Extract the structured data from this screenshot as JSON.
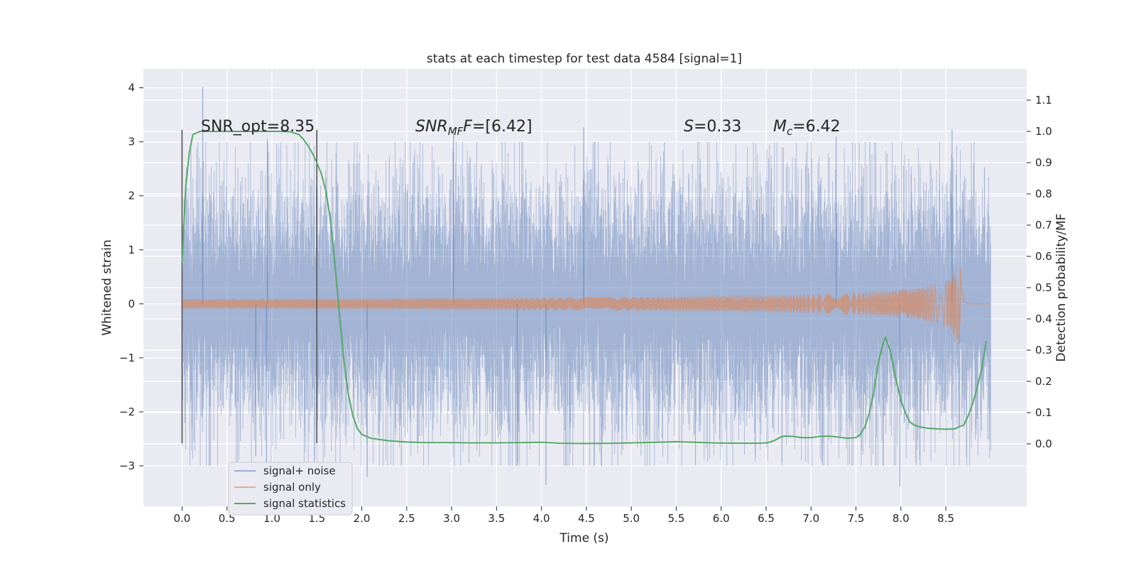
{
  "chart_data": {
    "type": "line",
    "title": "stats at each timestep for test data 4584 [signal=1]",
    "xlabel": "Time (s)",
    "ylabel": "Whitened strain",
    "y2label": "Detection probability/MF",
    "xlim": [
      -0.43,
      9.4
    ],
    "ylim": [
      -3.75,
      4.35
    ],
    "y2lim": [
      -0.2,
      1.2
    ],
    "x_ticks": [
      0.0,
      0.5,
      1.0,
      1.5,
      2.0,
      2.5,
      3.0,
      3.5,
      4.0,
      4.5,
      5.0,
      5.5,
      6.0,
      6.5,
      7.0,
      7.5,
      8.0,
      8.5
    ],
    "x_tick_labels": [
      "0.0",
      "0.5",
      "1.0",
      "1.5",
      "2.0",
      "2.5",
      "3.0",
      "3.5",
      "4.0",
      "4.5",
      "5.0",
      "5.5",
      "6.0",
      "6.5",
      "7.0",
      "7.5",
      "8.0",
      "8.5"
    ],
    "y_ticks": [
      -3,
      -2,
      -1,
      0,
      1,
      2,
      3,
      4
    ],
    "y_tick_labels": [
      "−3",
      "−2",
      "−1",
      "0",
      "1",
      "2",
      "3",
      "4"
    ],
    "y2_ticks": [
      0.0,
      0.1,
      0.2,
      0.3,
      0.4,
      0.5,
      0.6,
      0.7,
      0.8,
      0.9,
      1.0,
      1.1
    ],
    "y2_tick_labels": [
      "0.0",
      "0.1",
      "0.2",
      "0.3",
      "0.4",
      "0.5",
      "0.6",
      "0.7",
      "0.8",
      "0.9",
      "1.0",
      "1.1"
    ],
    "grid": true,
    "legend_position": "lower-left",
    "colors": {
      "background": "#eaeaf2",
      "grid": "#ffffff",
      "noise": "#4c72b0",
      "signal": "#dd8452",
      "stats": "#55a868",
      "vline": "#555555"
    },
    "series": [
      {
        "name": "signal+ noise",
        "axis": "left",
        "style": "dense-noise",
        "x_range": [
          0.0,
          9.0
        ],
        "envelope_1sigma": 0.9,
        "peaks": [
          [
            0.23,
            4.02
          ],
          [
            0.95,
            3.05
          ],
          [
            3.02,
            3.25
          ],
          [
            4.47,
            3.27
          ],
          [
            7.28,
            3.1
          ],
          [
            8.57,
            3.22
          ],
          [
            3.73,
            -3.0
          ],
          [
            4.05,
            -3.35
          ],
          [
            7.99,
            -3.38
          ],
          [
            2.06,
            -3.2
          ],
          [
            0.94,
            -3.05
          ],
          [
            0.82,
            -2.82
          ]
        ]
      },
      {
        "name": "signal only",
        "axis": "left",
        "style": "chirp",
        "x_range": [
          0.0,
          9.0
        ],
        "merger_time": 8.66,
        "peak_amplitude": 0.85
      },
      {
        "name": "signal statistics",
        "axis": "right",
        "x": [
          0.0,
          0.04,
          0.08,
          0.12,
          0.2,
          0.3,
          0.5,
          0.8,
          1.0,
          1.1,
          1.2,
          1.3,
          1.35,
          1.4,
          1.45,
          1.5,
          1.55,
          1.6,
          1.65,
          1.7,
          1.75,
          1.8,
          1.85,
          1.9,
          1.95,
          2.0,
          2.1,
          2.2,
          2.3,
          2.5,
          2.7,
          3.0,
          3.2,
          3.5,
          3.8,
          4.0,
          4.2,
          4.5,
          4.8,
          5.0,
          5.3,
          5.5,
          5.7,
          5.9,
          6.2,
          6.4,
          6.5,
          6.55,
          6.6,
          6.65,
          6.7,
          6.8,
          6.9,
          7.0,
          7.1,
          7.2,
          7.3,
          7.4,
          7.5,
          7.55,
          7.6,
          7.65,
          7.7,
          7.75,
          7.8,
          7.83,
          7.88,
          7.95,
          8.0,
          8.05,
          8.1,
          8.15,
          8.2,
          8.3,
          8.4,
          8.5,
          8.6,
          8.65,
          8.7,
          8.75,
          8.8,
          8.85,
          8.9,
          8.95
        ],
        "values": [
          0.58,
          0.82,
          0.93,
          0.99,
          1.0,
          1.0,
          1.0,
          1.0,
          1.0,
          1.0,
          0.999,
          0.99,
          0.975,
          0.955,
          0.93,
          0.9,
          0.865,
          0.81,
          0.72,
          0.58,
          0.42,
          0.27,
          0.16,
          0.09,
          0.05,
          0.03,
          0.018,
          0.014,
          0.01,
          0.006,
          0.004,
          0.004,
          0.003,
          0.003,
          0.004,
          0.005,
          0.002,
          0.001,
          0.002,
          0.003,
          0.005,
          0.007,
          0.005,
          0.003,
          0.002,
          0.002,
          0.003,
          0.006,
          0.012,
          0.02,
          0.025,
          0.024,
          0.02,
          0.02,
          0.024,
          0.025,
          0.022,
          0.018,
          0.02,
          0.03,
          0.055,
          0.1,
          0.17,
          0.26,
          0.32,
          0.34,
          0.3,
          0.2,
          0.14,
          0.1,
          0.07,
          0.06,
          0.055,
          0.05,
          0.048,
          0.047,
          0.048,
          0.055,
          0.06,
          0.09,
          0.13,
          0.18,
          0.24,
          0.33
        ]
      }
    ],
    "vlines": [
      {
        "x": 0.0,
        "y_range": [
          -2.58,
          3.22
        ]
      },
      {
        "x": 1.5,
        "y_range": [
          -2.58,
          3.22
        ]
      }
    ],
    "annotations": {
      "snr_opt": "SNR_opt=8.35",
      "snr_mf_base": "SNR",
      "snr_mf_sub": "MF",
      "snr_mf_value": "=[6.42]",
      "s_base": "S",
      "s_value": "=0.33",
      "mc_base": "M",
      "mc_sub": "c",
      "mc_value": "=6.42"
    }
  }
}
